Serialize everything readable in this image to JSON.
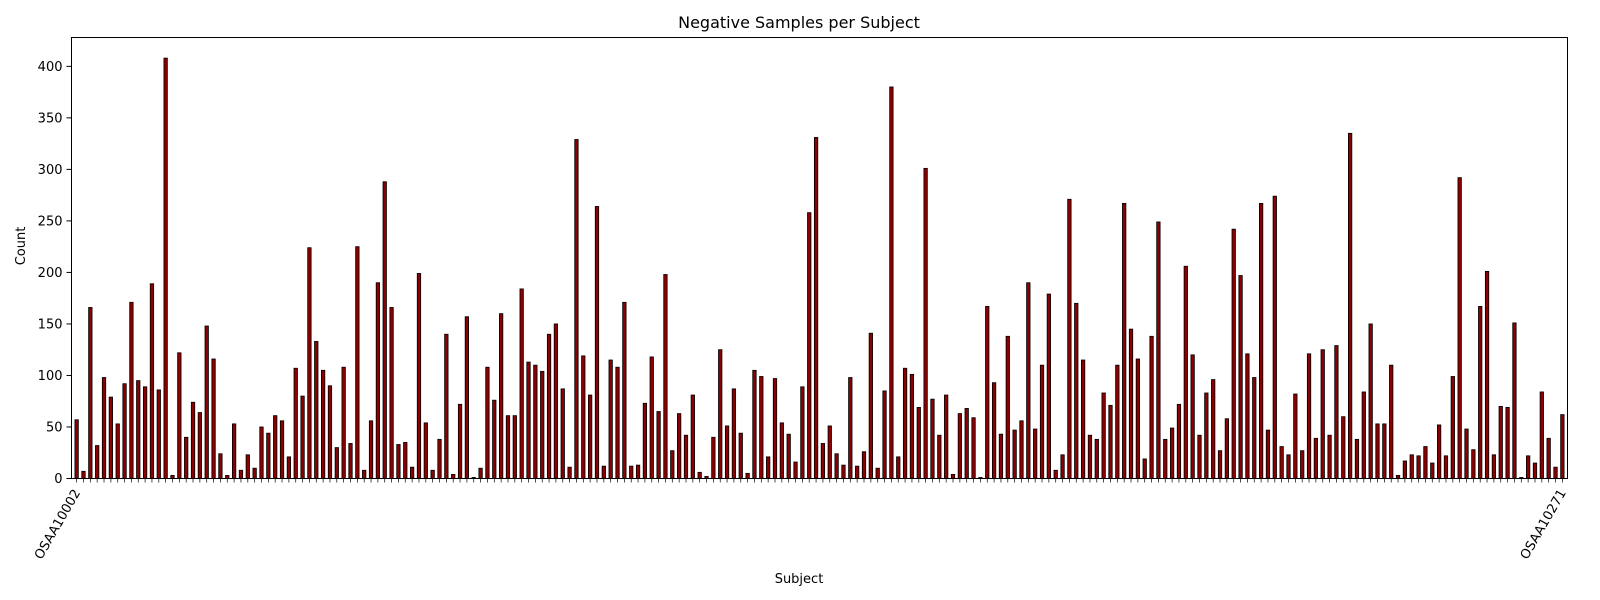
{
  "chart_data": {
    "type": "bar",
    "title": "Negative Samples per Subject",
    "xlabel": "Subject",
    "ylabel": "Count",
    "ylim": [
      0,
      428
    ],
    "yticks": [
      0,
      50,
      100,
      150,
      200,
      250,
      300,
      350,
      400
    ],
    "grid": false,
    "bar_color": "#8b0000",
    "edge_color": "#000000",
    "first_category": "OSAA10002",
    "last_category": "OSAA10271",
    "values": [
      57,
      7,
      166,
      32,
      98,
      79,
      53,
      92,
      171,
      95,
      89,
      189,
      86,
      408,
      3,
      122,
      40,
      74,
      64,
      148,
      116,
      24,
      3,
      53,
      8,
      23,
      10,
      50,
      44,
      61,
      56,
      21,
      107,
      80,
      224,
      133,
      105,
      90,
      30,
      108,
      34,
      225,
      8,
      56,
      190,
      288,
      166,
      33,
      35,
      11,
      199,
      54,
      8,
      38,
      140,
      4,
      72,
      157,
      1,
      10,
      108,
      76,
      160,
      61,
      61,
      184,
      113,
      110,
      104,
      140,
      150,
      87,
      11,
      329,
      119,
      81,
      264,
      12,
      115,
      108,
      171,
      12,
      13,
      73,
      118,
      65,
      198,
      27,
      63,
      42,
      81,
      6,
      2,
      40,
      125,
      51,
      87,
      44,
      5,
      105,
      99,
      21,
      97,
      54,
      43,
      16,
      89,
      258,
      331,
      34,
      51,
      24,
      13,
      98,
      12,
      26,
      141,
      10,
      85,
      380,
      21,
      107,
      101,
      69,
      301,
      77,
      42,
      81,
      4,
      63,
      68,
      59,
      1,
      167,
      93,
      43,
      138,
      47,
      56,
      190,
      48,
      110,
      179,
      8,
      23,
      271,
      170,
      115,
      42,
      38,
      83,
      71,
      110,
      267,
      145,
      116,
      19,
      138,
      249,
      38,
      49,
      72,
      206,
      120,
      42,
      83,
      96,
      27,
      58,
      242,
      197,
      121,
      98,
      267,
      47,
      274,
      31,
      23,
      82,
      27,
      121,
      39,
      125,
      42,
      129,
      60,
      335,
      38,
      84,
      150,
      53,
      53,
      110,
      3,
      17,
      23,
      22,
      31,
      15,
      52,
      22,
      99,
      292,
      48,
      28,
      167,
      201,
      23,
      70,
      69,
      151,
      1,
      22,
      15,
      84,
      39,
      11,
      62
    ]
  }
}
